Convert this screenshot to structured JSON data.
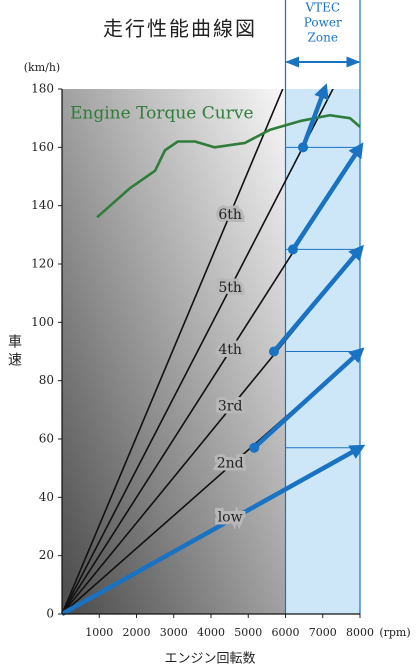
{
  "chart_data": {
    "type": "line",
    "title": "走行性能曲線図",
    "y_unit": "(km/h)",
    "x_unit": "(rpm)",
    "x_label": "エンジン回転数",
    "y_label": "車速",
    "xlim": [
      0,
      8000
    ],
    "ylim": [
      0,
      180
    ],
    "xticks": [
      1000,
      2000,
      3000,
      4000,
      5000,
      6000,
      7000,
      8000
    ],
    "yticks": [
      0,
      20,
      40,
      60,
      80,
      100,
      120,
      140,
      160,
      180
    ],
    "vtec_zone": {
      "lines": [
        "VTEC",
        "Power",
        "Zone"
      ],
      "xlim": [
        6000,
        8000
      ],
      "color": "#cde7f8"
    },
    "torque_curve": {
      "name": "Engine Torque Curve",
      "color": "#2e7d3a",
      "x": [
        940,
        1825,
        2500,
        2765,
        3110,
        3570,
        4100,
        4910,
        5580,
        6390,
        7190,
        7730,
        8000
      ],
      "values": [
        136,
        146,
        152,
        159,
        162,
        162,
        160,
        161.5,
        166,
        169,
        171,
        170,
        167
      ]
    },
    "gear_lines": [
      {
        "name": "low",
        "x": [
          0,
          8000
        ],
        "values": [
          0,
          57
        ]
      },
      {
        "name": "2nd",
        "x": [
          0,
          8000
        ],
        "values": [
          0,
          90
        ]
      },
      {
        "name": "3rd",
        "x": [
          0,
          8000
        ],
        "values": [
          0,
          125
        ]
      },
      {
        "name": "4th",
        "x": [
          0,
          8000
        ],
        "values": [
          0,
          160
        ]
      },
      {
        "name": "5th",
        "x": [
          0,
          8000
        ],
        "values": [
          0,
          198
        ]
      },
      {
        "name": "6th",
        "x": [
          0,
          8000
        ],
        "values": [
          0,
          243
        ]
      }
    ],
    "shift_arrows": {
      "color": "#1a72c2",
      "segments": [
        {
          "x": [
            0,
            8000
          ],
          "values": [
            0,
            57
          ]
        },
        {
          "x": [
            5160,
            8000
          ],
          "values": [
            57,
            90
          ]
        },
        {
          "x": [
            5690,
            8000
          ],
          "values": [
            90,
            125
          ]
        },
        {
          "x": [
            6200,
            8000
          ],
          "values": [
            125,
            160
          ]
        },
        {
          "x": [
            6470,
            7050
          ],
          "values": [
            160,
            180
          ]
        }
      ]
    }
  }
}
